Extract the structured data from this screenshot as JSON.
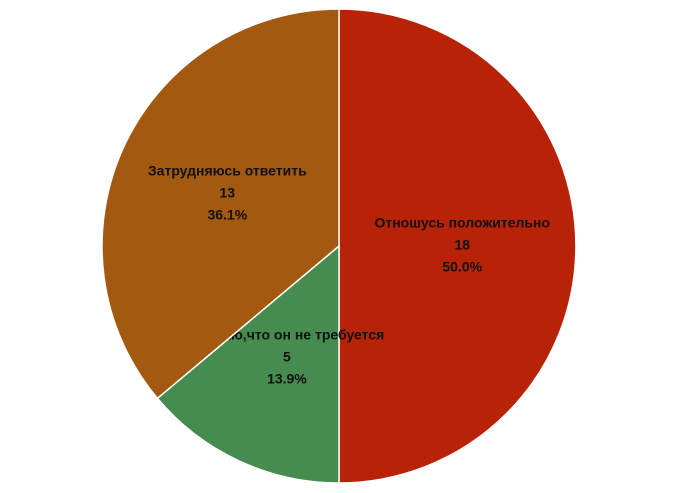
{
  "chart_data": {
    "type": "pie",
    "categories": [
      "Отношусь положительно",
      "Считаю,что он не требуется",
      "Затрудняюсь ответить"
    ],
    "values": [
      18,
      5,
      13
    ],
    "percent_labels": [
      "50.0%",
      "13.9%",
      "36.1%"
    ],
    "colors": [
      "#b82207",
      "#468b50",
      "#a35a10"
    ]
  }
}
